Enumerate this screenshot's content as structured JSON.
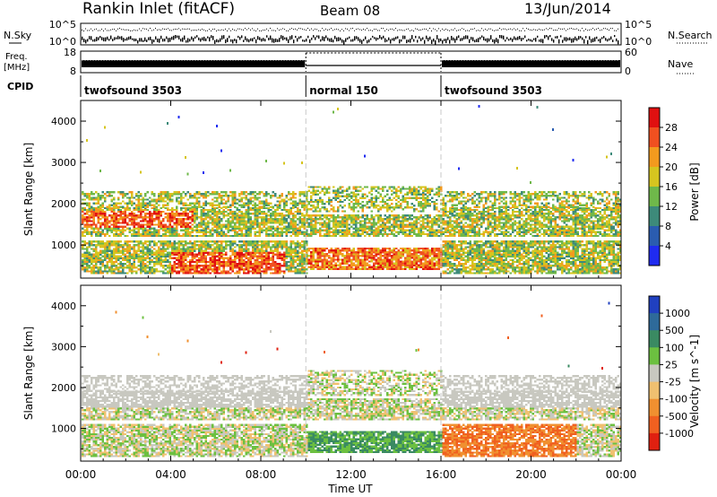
{
  "header": {
    "station": "Rankin Inlet (fitACF)",
    "beam": "Beam 08",
    "date": "13/Jun/2014"
  },
  "panels": {
    "nsky": {
      "label": "N.Sky",
      "ticks_left": [
        "10^5",
        "10^0"
      ],
      "ticks_right": [
        "10^5",
        "10^0"
      ],
      "right_label": "N.Search"
    },
    "freq": {
      "label_top": "Freq.",
      "label_bottom": "[MHz]",
      "ticks_left": [
        "18",
        "8"
      ],
      "ticks_right": [
        "60",
        "0"
      ],
      "right_label": "Nave"
    },
    "cpid": {
      "label": "CPID",
      "segments": [
        {
          "start_hour": 0,
          "end_hour": 10,
          "text": "twofsound 3503"
        },
        {
          "start_hour": 10,
          "end_hour": 16,
          "text": "normal 150"
        },
        {
          "start_hour": 16,
          "end_hour": 24,
          "text": "twofsound 3503"
        }
      ]
    }
  },
  "chart_data": [
    {
      "type": "heatmap",
      "quantity": "power",
      "ylabel": "Slant Range [km]",
      "ylim": [
        200,
        4500
      ],
      "yticks": [
        "1000",
        "2000",
        "3000",
        "4000"
      ],
      "xlim_hours": [
        0,
        24
      ],
      "colorbar": {
        "label": "Power [dB]",
        "range": [
          0,
          32
        ],
        "ticks": [
          "4",
          "8",
          "12",
          "16",
          "20",
          "24",
          "28"
        ],
        "colors": [
          "#1f2bf0",
          "#2a5cb0",
          "#3d8a7a",
          "#6fb84a",
          "#d6c51f",
          "#f39a1e",
          "#f05020",
          "#e01010"
        ]
      }
    },
    {
      "type": "heatmap",
      "quantity": "velocity",
      "ylabel": "Slant Range [km]",
      "ylim": [
        200,
        4500
      ],
      "yticks": [
        "1000",
        "2000",
        "3000",
        "4000"
      ],
      "xlim_hours": [
        0,
        24
      ],
      "xticks": [
        "00:00",
        "04:00",
        "08:00",
        "12:00",
        "16:00",
        "20:00",
        "00:00"
      ],
      "xlabel": "Time UT",
      "colorbar": {
        "label": "Velocity [m s^-1]",
        "ticks": [
          "1000",
          "500",
          "100",
          "25",
          "-25",
          "-100",
          "-500",
          "-1000"
        ],
        "colors": [
          "#2040c0",
          "#2e6a9a",
          "#3a8a62",
          "#6cc040",
          "#c8c8c0",
          "#f0c070",
          "#f09030",
          "#f06020",
          "#e02010"
        ]
      }
    }
  ]
}
